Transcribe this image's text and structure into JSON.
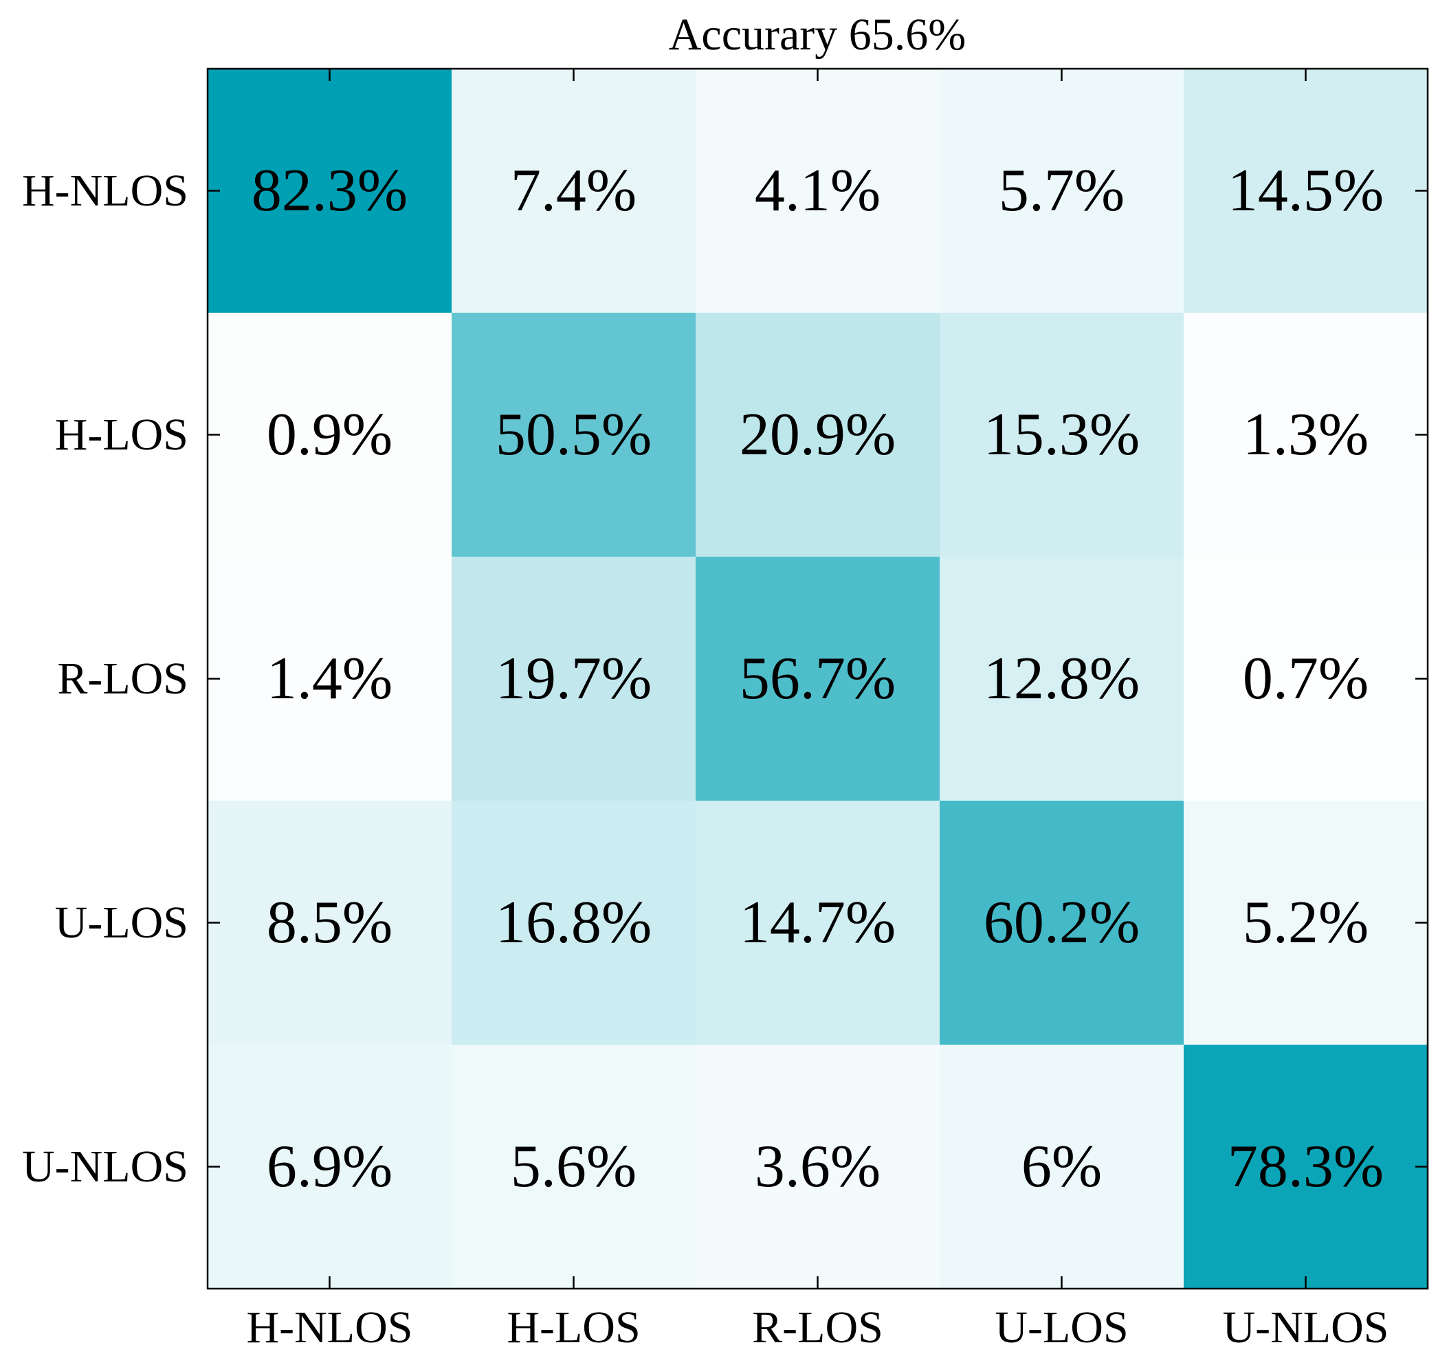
{
  "chart_data": {
    "type": "heatmap",
    "title": "Accurary 65.6%",
    "xlabel": "",
    "ylabel": "",
    "x_categories": [
      "H-NLOS",
      "H-LOS",
      "R-LOS",
      "U-LOS",
      "U-NLOS"
    ],
    "y_categories": [
      "H-NLOS",
      "H-LOS",
      "R-LOS",
      "U-LOS",
      "U-NLOS"
    ],
    "values": [
      [
        82.3,
        7.4,
        4.1,
        5.7,
        14.5
      ],
      [
        0.9,
        50.5,
        20.9,
        15.3,
        1.3
      ],
      [
        1.4,
        19.7,
        56.7,
        12.8,
        0.7
      ],
      [
        8.5,
        16.8,
        14.7,
        60.2,
        5.2
      ],
      [
        6.9,
        5.6,
        3.6,
        6,
        78.3
      ]
    ],
    "cell_labels": [
      [
        "82.3%",
        "7.4%",
        "4.1%",
        "5.7%",
        "14.5%"
      ],
      [
        "0.9%",
        "50.5%",
        "20.9%",
        "15.3%",
        "1.3%"
      ],
      [
        "1.4%",
        "19.7%",
        "56.7%",
        "12.8%",
        "0.7%"
      ],
      [
        "8.5%",
        "16.8%",
        "14.7%",
        "60.2%",
        "5.2%"
      ],
      [
        "6.9%",
        "5.6%",
        "3.6%",
        "6%",
        "78.3%"
      ]
    ],
    "value_unit": "%",
    "color_range": [
      0,
      82.3
    ],
    "colormap": {
      "low": "#ffffff",
      "high": "#00a0b4"
    },
    "grid": false,
    "legend": "none"
  }
}
